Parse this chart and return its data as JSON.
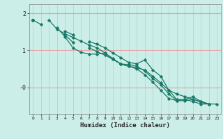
{
  "xlabel": "Humidex (Indice chaleur)",
  "bg_color": "#cceee8",
  "line_color": "#1a7a6a",
  "grid_h_color": "#e8a0a0",
  "grid_v_color": "#b0cece",
  "xlim": [
    -0.5,
    23.5
  ],
  "ylim": [
    -0.72,
    2.25
  ],
  "yticks": [
    0,
    1,
    2
  ],
  "ytick_labels": [
    "-0",
    "1",
    "2"
  ],
  "xticks": [
    0,
    1,
    2,
    3,
    4,
    5,
    6,
    7,
    8,
    9,
    10,
    11,
    12,
    13,
    14,
    15,
    16,
    17,
    18,
    19,
    20,
    21,
    22,
    23
  ],
  "series": [
    [
      1.82,
      1.7,
      null,
      null,
      null,
      null,
      null,
      null,
      null,
      null,
      null,
      null,
      null,
      null,
      null,
      null,
      null,
      null,
      null,
      null,
      null,
      null,
      null,
      null
    ],
    [
      1.82,
      null,
      1.82,
      1.57,
      1.45,
      1.35,
      1.25,
      1.15,
      1.07,
      0.93,
      0.76,
      0.63,
      0.57,
      0.53,
      0.47,
      0.3,
      0.12,
      -0.08,
      -0.18,
      -0.25,
      -0.32,
      -0.4,
      -0.45,
      -0.45
    ],
    [
      1.82,
      null,
      null,
      null,
      1.52,
      1.42,
      null,
      1.24,
      1.17,
      1.07,
      0.93,
      0.8,
      0.67,
      0.64,
      0.74,
      0.47,
      0.3,
      -0.08,
      -0.33,
      -0.33,
      -0.25,
      -0.38,
      -0.45,
      null
    ],
    [
      1.82,
      null,
      null,
      1.62,
      1.37,
      1.07,
      0.95,
      0.9,
      0.9,
      0.93,
      0.78,
      0.63,
      0.57,
      0.5,
      0.34,
      0.14,
      -0.08,
      -0.3,
      -0.36,
      -0.33,
      -0.38,
      -0.45,
      -0.45,
      null
    ],
    [
      1.82,
      null,
      null,
      null,
      1.42,
      1.22,
      null,
      1.07,
      0.97,
      0.87,
      0.76,
      0.63,
      0.62,
      0.57,
      0.44,
      0.24,
      0.07,
      -0.18,
      -0.36,
      -0.36,
      -0.33,
      -0.38,
      -0.45,
      null
    ]
  ]
}
